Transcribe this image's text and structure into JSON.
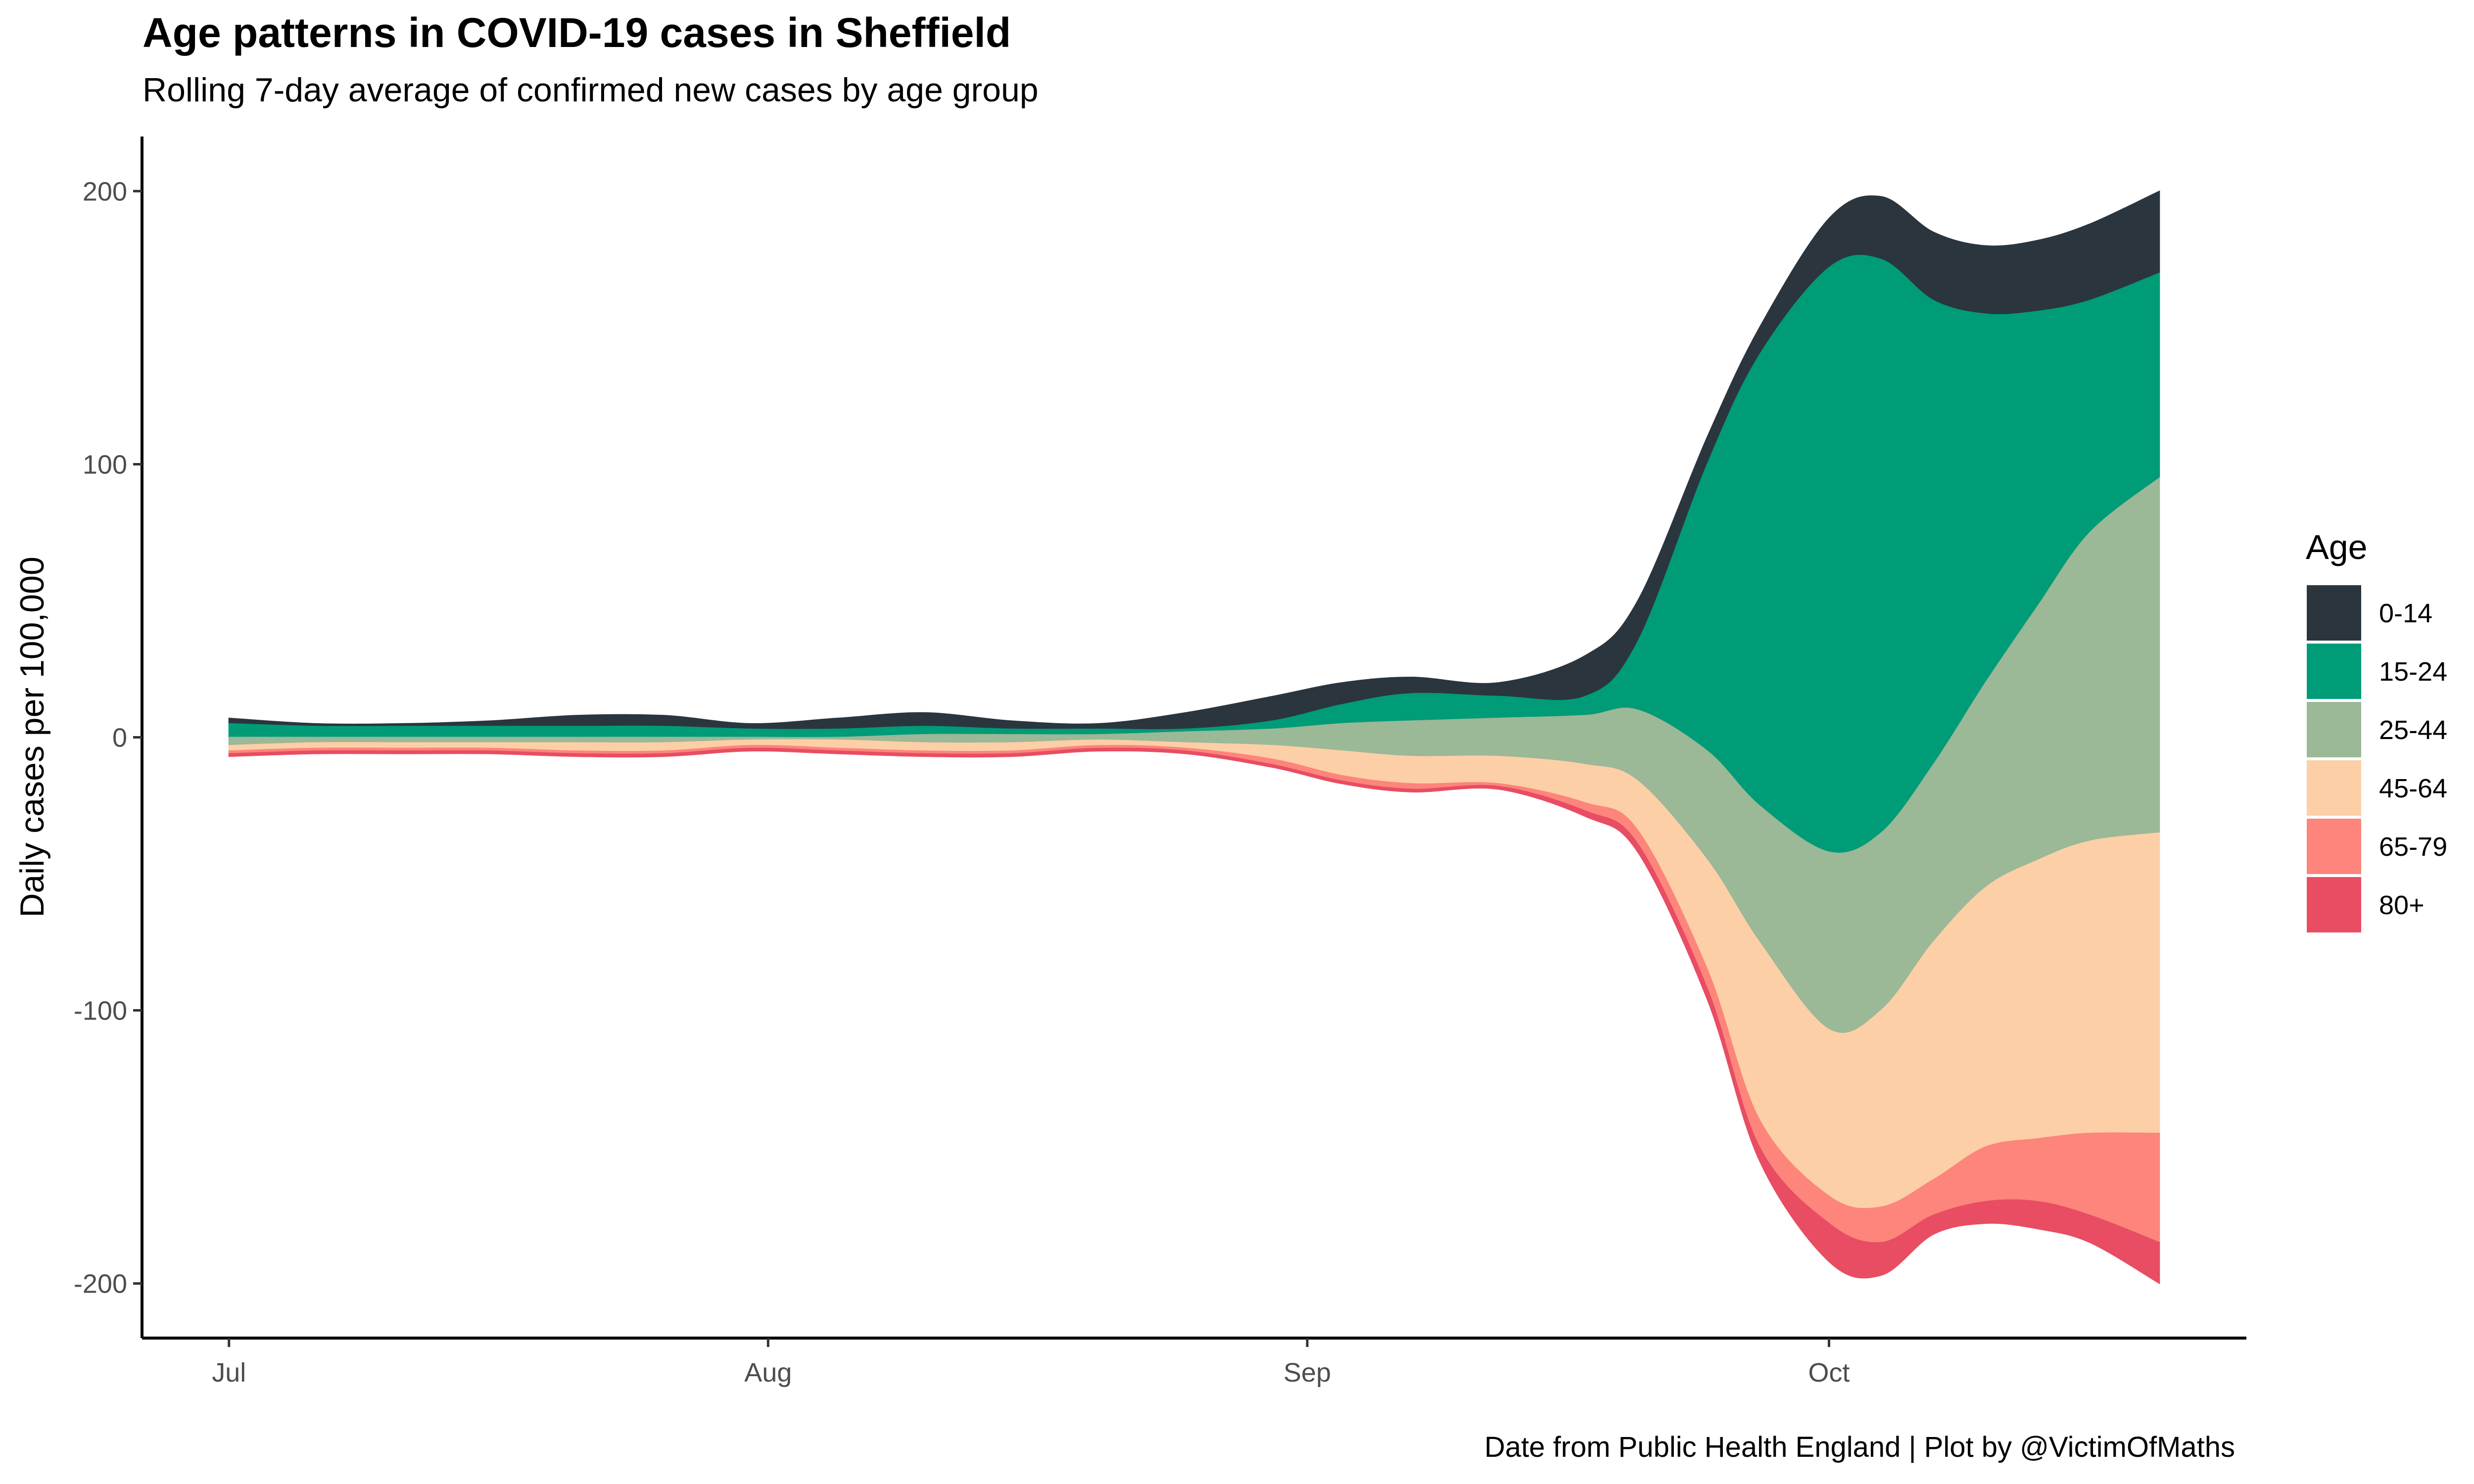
{
  "title": "Age patterns in COVID-19 cases in Sheffield",
  "subtitle": "Rolling 7-day average of confirmed new cases by age group",
  "caption": "Date from Public Health England | Plot by @VictimOfMaths",
  "chart_data": {
    "type": "area",
    "variant": "streamgraph",
    "ylabel": "Daily cases per 100,000",
    "xlabel": "",
    "x_ticks": [
      {
        "label": "Jul",
        "date": "2020-07-01"
      },
      {
        "label": "Aug",
        "date": "2020-08-01"
      },
      {
        "label": "Sep",
        "date": "2020-09-01"
      },
      {
        "label": "Oct",
        "date": "2020-10-01"
      }
    ],
    "y_ticks": [
      200,
      100,
      0,
      -100,
      -200
    ],
    "xlim": [
      "2020-06-26",
      "2020-10-25"
    ],
    "ylim": [
      -220,
      220
    ],
    "grid": false,
    "legend": {
      "title": "Age",
      "position": "right"
    },
    "baseline_note": "Layers are stacked outward from a shifting baseline; 0-14, 15-24 lie above and 25-44, 45-64, 65-79, 80+ fill toward the bottom.",
    "dates": [
      "2020-07-01",
      "2020-07-06",
      "2020-07-11",
      "2020-07-16",
      "2020-07-21",
      "2020-07-26",
      "2020-07-31",
      "2020-08-05",
      "2020-08-10",
      "2020-08-15",
      "2020-08-20",
      "2020-08-25",
      "2020-08-30",
      "2020-09-03",
      "2020-09-07",
      "2020-09-12",
      "2020-09-17",
      "2020-09-20",
      "2020-09-24",
      "2020-09-27",
      "2020-10-01",
      "2020-10-04",
      "2020-10-07",
      "2020-10-10",
      "2020-10-13",
      "2020-10-16",
      "2020-10-20"
    ],
    "boundaries": {
      "top_0_14": [
        7,
        5,
        5,
        6,
        8,
        8,
        5,
        7,
        9,
        6,
        5,
        9,
        15,
        20,
        22,
        20,
        30,
        50,
        110,
        150,
        190,
        198,
        185,
        180,
        182,
        188,
        200
      ],
      "top_15_24": [
        5,
        4,
        4,
        4,
        4,
        4,
        3,
        3,
        4,
        3,
        3,
        3,
        6,
        12,
        16,
        15,
        15,
        35,
        100,
        140,
        172,
        175,
        160,
        155,
        156,
        160,
        170
      ],
      "top_25_44": [
        0,
        0,
        0,
        0,
        0,
        0,
        0,
        0,
        1,
        1,
        1,
        2,
        3,
        5,
        6,
        7,
        8,
        10,
        -5,
        -25,
        -42,
        -35,
        -10,
        20,
        48,
        75,
        95
      ],
      "top_45_64": [
        -3,
        -2,
        -2,
        -2,
        -2,
        -2,
        -1,
        -1,
        -2,
        -2,
        -1,
        -2,
        -3,
        -5,
        -7,
        -7,
        -10,
        -16,
        -45,
        -75,
        -107,
        -100,
        -75,
        -55,
        -45,
        -38,
        -35
      ],
      "top_65_79": [
        -5,
        -4,
        -4,
        -4,
        -5,
        -5,
        -3,
        -4,
        -5,
        -5,
        -3,
        -4,
        -8,
        -14,
        -17,
        -17,
        -24,
        -34,
        -85,
        -140,
        -168,
        -172,
        -162,
        -150,
        -147,
        -145,
        -145
      ],
      "top_80_plus": [
        -6,
        -5,
        -5,
        -5,
        -6,
        -6,
        -4,
        -5,
        -6,
        -6,
        -4,
        -5,
        -10,
        -16,
        -19,
        -18,
        -27,
        -39,
        -92,
        -150,
        -178,
        -185,
        -175,
        -170,
        -170,
        -175,
        -185
      ],
      "bottom": [
        -7,
        -6,
        -6,
        -6,
        -7,
        -7,
        -5,
        -6,
        -7,
        -7,
        -5,
        -6,
        -11,
        -17,
        -20,
        -19,
        -29,
        -42,
        -96,
        -155,
        -192,
        -197,
        -182,
        -178,
        -180,
        -185,
        -200
      ]
    },
    "series": [
      {
        "name": "0-14",
        "color": "#2b353e"
      },
      {
        "name": "15-24",
        "color": "#009b77"
      },
      {
        "name": "25-44",
        "color": "#9bb897"
      },
      {
        "name": "45-64",
        "color": "#fccfa7"
      },
      {
        "name": "65-79",
        "color": "#fd857b"
      },
      {
        "name": "80+",
        "color": "#e84d63"
      }
    ]
  }
}
